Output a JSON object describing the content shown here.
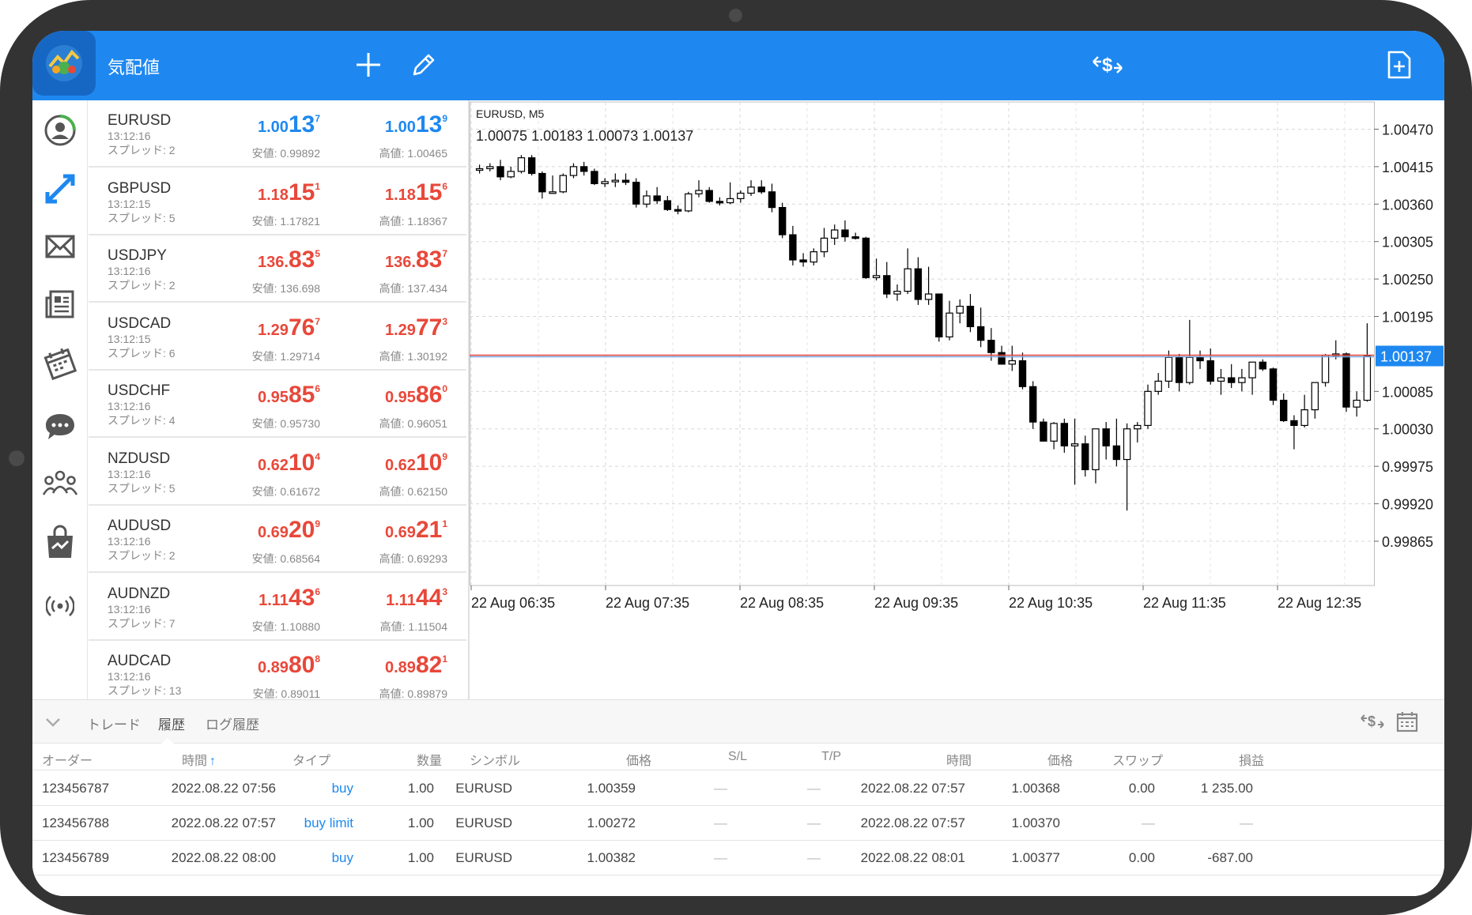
{
  "app": {
    "title": "気配値"
  },
  "toolbar": {
    "add_icon": "plus-icon",
    "edit_icon": "pencil-icon",
    "trade_icon": "dollar-exchange-icon",
    "new_order_icon": "file-plus-icon"
  },
  "nav": [
    "quotes-icon",
    "chart-icon",
    "mail-icon",
    "news-icon",
    "calendar-icon",
    "chat-icon",
    "community-icon",
    "market-icon",
    "signal-icon"
  ],
  "quotes": [
    {
      "symbol": "EURUSD",
      "time": "13:12:16",
      "spread": "スプレッド: 2",
      "bid_pre": "1.00",
      "bid_big": "13",
      "bid_sup": "7",
      "ask_pre": "1.00",
      "ask_big": "13",
      "ask_sup": "9",
      "low": "安値: 0.99892",
      "high": "高値: 1.00465",
      "color": "blue"
    },
    {
      "symbol": "GBPUSD",
      "time": "13:12:15",
      "spread": "スプレッド: 5",
      "bid_pre": "1.18",
      "bid_big": "15",
      "bid_sup": "1",
      "ask_pre": "1.18",
      "ask_big": "15",
      "ask_sup": "6",
      "low": "安値: 1.17821",
      "high": "高値: 1.18367",
      "color": "red"
    },
    {
      "symbol": "USDJPY",
      "time": "13:12:16",
      "spread": "スプレッド: 2",
      "bid_pre": "136.",
      "bid_big": "83",
      "bid_sup": "5",
      "ask_pre": "136.",
      "ask_big": "83",
      "ask_sup": "7",
      "low": "安値: 136.698",
      "high": "高値: 137.434",
      "color": "red"
    },
    {
      "symbol": "USDCAD",
      "time": "13:12:15",
      "spread": "スプレッド: 6",
      "bid_pre": "1.29",
      "bid_big": "76",
      "bid_sup": "7",
      "ask_pre": "1.29",
      "ask_big": "77",
      "ask_sup": "3",
      "low": "安値: 1.29714",
      "high": "高値: 1.30192",
      "color": "red"
    },
    {
      "symbol": "USDCHF",
      "time": "13:12:16",
      "spread": "スプレッド: 4",
      "bid_pre": "0.95",
      "bid_big": "85",
      "bid_sup": "6",
      "ask_pre": "0.95",
      "ask_big": "86",
      "ask_sup": "0",
      "low": "安値: 0.95730",
      "high": "高値: 0.96051",
      "color": "red"
    },
    {
      "symbol": "NZDUSD",
      "time": "13:12:16",
      "spread": "スプレッド: 5",
      "bid_pre": "0.62",
      "bid_big": "10",
      "bid_sup": "4",
      "ask_pre": "0.62",
      "ask_big": "10",
      "ask_sup": "9",
      "low": "安値: 0.61672",
      "high": "高値: 0.62150",
      "color": "red"
    },
    {
      "symbol": "AUDUSD",
      "time": "13:12:16",
      "spread": "スプレッド: 2",
      "bid_pre": "0.69",
      "bid_big": "20",
      "bid_sup": "9",
      "ask_pre": "0.69",
      "ask_big": "21",
      "ask_sup": "1",
      "low": "安値: 0.68564",
      "high": "高値: 0.69293",
      "color": "red"
    },
    {
      "symbol": "AUDNZD",
      "time": "13:12:16",
      "spread": "スプレッド: 7",
      "bid_pre": "1.11",
      "bid_big": "43",
      "bid_sup": "6",
      "ask_pre": "1.11",
      "ask_big": "44",
      "ask_sup": "3",
      "low": "安値: 1.10880",
      "high": "高値: 1.11504",
      "color": "red"
    },
    {
      "symbol": "AUDCAD",
      "time": "13:12:16",
      "spread": "スプレッド: 13",
      "bid_pre": "0.89",
      "bid_big": "80",
      "bid_sup": "8",
      "ask_pre": "0.89",
      "ask_big": "82",
      "ask_sup": "1",
      "low": "安値: 0.89011",
      "high": "高値: 0.89879",
      "color": "red"
    }
  ],
  "chart": {
    "symbol_tf": "EURUSD, M5",
    "ohlc": "1.00075 1.00183 1.00073 1.00137",
    "current_price": "1.00137",
    "current_value": 1.00137,
    "y_ticks": [
      "1.00470",
      "1.00415",
      "1.00360",
      "1.00305",
      "1.00250",
      "1.00195",
      "1.00085",
      "1.00030",
      "0.99975",
      "0.99920",
      "0.99865"
    ],
    "x_ticks": [
      "22 Aug 06:35",
      "22 Aug 07:35",
      "22 Aug 08:35",
      "22 Aug 09:35",
      "22 Aug 10:35",
      "22 Aug 11:35",
      "22 Aug 12:35"
    ],
    "ylim": [
      0.998,
      1.0051
    ]
  },
  "chart_data": {
    "type": "candlestick",
    "title": "EURUSD, M5",
    "xlabel": "",
    "ylabel": "",
    "ylim": [
      0.998,
      1.0051
    ],
    "candles": [
      [
        1.0041,
        1.00418,
        1.00405,
        1.00412
      ],
      [
        1.00412,
        1.0042,
        1.00408,
        1.00415
      ],
      [
        1.00415,
        1.00425,
        1.00395,
        1.004
      ],
      [
        1.004,
        1.00415,
        1.00398,
        1.00408
      ],
      [
        1.00408,
        1.00432,
        1.00405,
        1.00428
      ],
      [
        1.00428,
        1.00432,
        1.00402,
        1.00405
      ],
      [
        1.00405,
        1.00408,
        1.00368,
        1.00378
      ],
      [
        1.00378,
        1.00402,
        1.00375,
        1.00378
      ],
      [
        1.00378,
        1.00405,
        1.00376,
        1.00402
      ],
      [
        1.00402,
        1.0042,
        1.00398,
        1.00415
      ],
      [
        1.00415,
        1.00422,
        1.00402,
        1.00408
      ],
      [
        1.00408,
        1.00412,
        1.00388,
        1.0039
      ],
      [
        1.0039,
        1.00398,
        1.00385,
        1.00393
      ],
      [
        1.00393,
        1.00405,
        1.00385,
        1.00395
      ],
      [
        1.00395,
        1.00405,
        1.00388,
        1.00392
      ],
      [
        1.00392,
        1.00398,
        1.00355,
        1.0036
      ],
      [
        1.0036,
        1.0038,
        1.00355,
        1.00372
      ],
      [
        1.00372,
        1.00385,
        1.0036,
        1.00365
      ],
      [
        1.00365,
        1.00372,
        1.0035,
        1.00352
      ],
      [
        1.00352,
        1.00358,
        1.00345,
        1.0035
      ],
      [
        1.0035,
        1.00378,
        1.00348,
        1.00375
      ],
      [
        1.00375,
        1.00395,
        1.0037,
        1.0038
      ],
      [
        1.0038,
        1.00385,
        1.00362,
        1.00364
      ],
      [
        1.00364,
        1.0037,
        1.00358,
        1.00362
      ],
      [
        1.00362,
        1.00392,
        1.0036,
        1.00368
      ],
      [
        1.00368,
        1.0038,
        1.00362,
        1.00376
      ],
      [
        1.00376,
        1.00395,
        1.00372,
        1.00385
      ],
      [
        1.00385,
        1.00395,
        1.00375,
        1.00378
      ],
      [
        1.00378,
        1.0039,
        1.00348,
        1.00355
      ],
      [
        1.00355,
        1.00362,
        1.0031,
        1.00315
      ],
      [
        1.00315,
        1.00328,
        1.0027,
        1.00278
      ],
      [
        1.00278,
        1.00288,
        1.00268,
        1.00275
      ],
      [
        1.00275,
        1.00295,
        1.0027,
        1.0029
      ],
      [
        1.0029,
        1.00325,
        1.00282,
        1.0031
      ],
      [
        1.0031,
        1.0033,
        1.003,
        1.00322
      ],
      [
        1.00322,
        1.00336,
        1.00305,
        1.00312
      ],
      [
        1.00312,
        1.00318,
        1.00308,
        1.0031
      ],
      [
        1.0031,
        1.00312,
        1.0025,
        1.00252
      ],
      [
        1.00252,
        1.0028,
        1.00248,
        1.00255
      ],
      [
        1.00255,
        1.00275,
        1.00222,
        1.00228
      ],
      [
        1.00228,
        1.00242,
        1.00218,
        1.00232
      ],
      [
        1.00232,
        1.00295,
        1.00228,
        1.00265
      ],
      [
        1.00265,
        1.00282,
        1.00212,
        1.0022
      ],
      [
        1.0022,
        1.00268,
        1.00212,
        1.00228
      ],
      [
        1.00228,
        1.00228,
        1.00158,
        1.00165
      ],
      [
        1.00165,
        1.00218,
        1.0016,
        1.002
      ],
      [
        1.002,
        1.0022,
        1.00185,
        1.0021
      ],
      [
        1.0021,
        1.00228,
        1.00172,
        1.0018
      ],
      [
        1.0018,
        1.00208,
        1.0015,
        1.0016
      ],
      [
        1.0016,
        1.00178,
        1.0013,
        1.00142
      ],
      [
        1.00142,
        1.00152,
        1.00128,
        1.00125
      ],
      [
        1.00125,
        1.00152,
        1.00115,
        1.0013
      ],
      [
        1.0013,
        1.00142,
        1.00088,
        1.00092
      ],
      [
        1.00092,
        1.001,
        1.0003,
        1.0004
      ],
      [
        1.0004,
        1.00045,
        1.00012,
        1.00012
      ],
      [
        1.00012,
        1.0004,
        1.0,
        1.00038
      ],
      [
        1.00038,
        1.00045,
        0.99995,
        1.00005
      ],
      [
        1.00005,
        1.00045,
        0.99948,
        1.00008
      ],
      [
        1.00008,
        1.0002,
        0.9996,
        0.9997
      ],
      [
        0.9997,
        1.00025,
        0.9995,
        1.0003
      ],
      [
        1.0003,
        1.0004,
        0.99985,
        1.00005
      ],
      [
        1.00005,
        1.00045,
        0.99975,
        0.99985
      ],
      [
        0.99985,
        1.00038,
        0.9991,
        1.0003
      ],
      [
        1.0003,
        1.0004,
        1.0001,
        1.00035
      ],
      [
        1.00035,
        1.00095,
        1.0003,
        1.00085
      ],
      [
        1.00085,
        1.00112,
        1.0008,
        1.001
      ],
      [
        1.001,
        1.00145,
        1.0009,
        1.00135
      ],
      [
        1.00135,
        1.0014,
        1.00085,
        1.00098
      ],
      [
        1.00098,
        1.0019,
        1.00095,
        1.00135
      ],
      [
        1.00135,
        1.00145,
        1.00118,
        1.0013
      ],
      [
        1.0013,
        1.00148,
        1.00095,
        1.001
      ],
      [
        1.001,
        1.00118,
        1.0008,
        1.00105
      ],
      [
        1.00105,
        1.00125,
        1.0009,
        1.00098
      ],
      [
        1.00098,
        1.00118,
        1.00085,
        1.00105
      ],
      [
        1.00105,
        1.00125,
        1.0008,
        1.00128
      ],
      [
        1.00128,
        1.00132,
        1.00115,
        1.00118
      ],
      [
        1.00118,
        1.0012,
        1.00065,
        1.00072
      ],
      [
        1.00072,
        1.00082,
        1.0004,
        1.00042
      ],
      [
        1.00042,
        1.0005,
        1.0,
        1.00035
      ],
      [
        1.00035,
        1.0008,
        1.00032,
        1.00058
      ],
      [
        1.00058,
        1.00095,
        1.00045,
        1.00098
      ],
      [
        1.00098,
        1.0014,
        1.00092,
        1.00138
      ],
      [
        1.00138,
        1.0016,
        1.00132,
        1.0014
      ],
      [
        1.0014,
        1.00142,
        1.00055,
        1.00062
      ],
      [
        1.00062,
        1.00085,
        1.00048,
        1.00072
      ],
      [
        1.00072,
        1.00185,
        1.0007,
        1.00137
      ]
    ]
  },
  "history": {
    "tabs": [
      "トレード",
      "履歴",
      "ログ履歴"
    ],
    "active_tab": 1,
    "columns": [
      "オーダー",
      "時間",
      "タイプ",
      "数量",
      "シンボル",
      "価格",
      "S/L",
      "T/P",
      "時間",
      "価格",
      "スワップ",
      "損益"
    ],
    "sort_arrow": "↑",
    "rows": [
      [
        "123456787",
        "2022.08.22 07:56",
        "buy",
        "1.00",
        "EURUSD",
        "1.00359",
        "—",
        "—",
        "2022.08.22 07:57",
        "1.00368",
        "0.00",
        "1 235.00"
      ],
      [
        "123456788",
        "2022.08.22 07:57",
        "buy limit",
        "1.00",
        "EURUSD",
        "1.00272",
        "—",
        "—",
        "2022.08.22 07:57",
        "1.00370",
        "—",
        "—"
      ],
      [
        "123456789",
        "2022.08.22 08:00",
        "buy",
        "1.00",
        "EURUSD",
        "1.00382",
        "—",
        "—",
        "2022.08.22 08:01",
        "1.00377",
        "0.00",
        "-687.00"
      ]
    ]
  }
}
